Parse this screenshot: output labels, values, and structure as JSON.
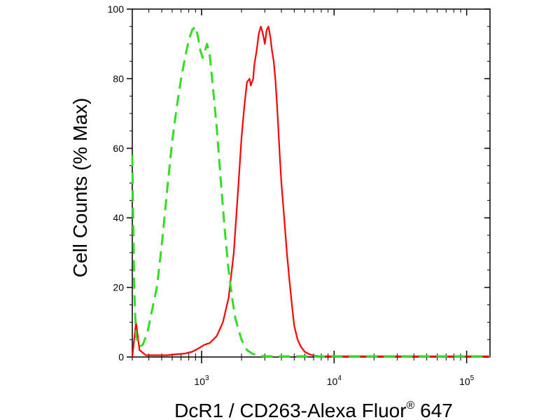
{
  "chart_data": {
    "type": "line",
    "xlabel": "DcR1 / CD263-Alexa Fluor",
    "xlabel_sup": "®",
    "xlabel_suffix": " 647",
    "ylabel": "Cell Counts (% Max)",
    "x_scale": "log",
    "xlim": [
      300,
      150000
    ],
    "ylim": [
      0,
      100
    ],
    "yticks": [
      {
        "value": 0,
        "label": "0"
      },
      {
        "value": 20,
        "label": "20"
      },
      {
        "value": 40,
        "label": "40"
      },
      {
        "value": 60,
        "label": "60"
      },
      {
        "value": 80,
        "label": "80"
      },
      {
        "value": 100,
        "label": "100"
      }
    ],
    "xticks": [
      {
        "value": 1000,
        "base": "10",
        "exp": "3"
      },
      {
        "value": 10000,
        "base": "10",
        "exp": "4"
      },
      {
        "value": 100000,
        "base": "10",
        "exp": "5"
      }
    ],
    "grid": false,
    "legend": "none",
    "series": [
      {
        "color": "#ff0000",
        "style": "solid",
        "x": [
          300,
          310,
          320,
          340,
          380,
          450,
          550,
          650,
          750,
          850,
          950,
          1050,
          1150,
          1300,
          1450,
          1600,
          1750,
          1900,
          2000,
          2100,
          2200,
          2300,
          2350,
          2400,
          2450,
          2500,
          2600,
          2700,
          2800,
          2900,
          3000,
          3100,
          3200,
          3300,
          3400,
          3500,
          3600,
          3700,
          3800,
          3900,
          4000,
          4200,
          4400,
          4600,
          4800,
          5000,
          5300,
          5600,
          6000,
          6500,
          7000,
          7500,
          8000,
          9000,
          10000,
          15000,
          30000,
          60000,
          100000,
          150000
        ],
        "y": [
          0,
          5,
          10,
          2,
          0.5,
          0.5,
          0.5,
          0.8,
          1,
          1.5,
          2.5,
          3.5,
          4,
          6,
          10,
          17,
          30,
          50,
          63,
          72,
          79,
          80,
          78,
          79,
          80,
          84,
          88,
          93,
          95,
          93,
          90,
          94,
          95,
          92,
          88,
          85,
          80,
          73,
          65,
          57,
          50,
          40,
          30,
          22,
          15,
          9,
          5,
          3,
          1.5,
          0.8,
          0.4,
          0.3,
          0.2,
          0.2,
          0.2,
          0.2,
          0.2,
          0.2,
          0.2,
          0.2
        ]
      },
      {
        "color": "#33dd22",
        "style": "dashed",
        "x": [
          300,
          310,
          320,
          340,
          360,
          390,
          420,
          460,
          500,
          550,
          600,
          650,
          700,
          750,
          800,
          850,
          900,
          940,
          980,
          1020,
          1060,
          1100,
          1150,
          1200,
          1300,
          1400,
          1500,
          1600,
          1700,
          1800,
          2000,
          2200,
          2400,
          2600,
          2800,
          3000,
          3500,
          4000,
          5000,
          7000,
          10000,
          20000,
          50000,
          100000,
          150000
        ],
        "y": [
          58,
          20,
          6,
          3,
          3.5,
          7,
          13,
          20,
          32,
          48,
          62,
          72,
          80,
          86,
          91,
          94,
          95,
          92,
          88,
          86,
          88,
          90,
          87,
          80,
          66,
          50,
          36,
          25,
          17,
          11,
          5,
          2,
          1,
          0.5,
          0.3,
          0.2,
          0.2,
          0.2,
          0.2,
          0.2,
          0.2,
          0.2,
          0.2,
          0.2,
          0.2
        ]
      }
    ]
  }
}
